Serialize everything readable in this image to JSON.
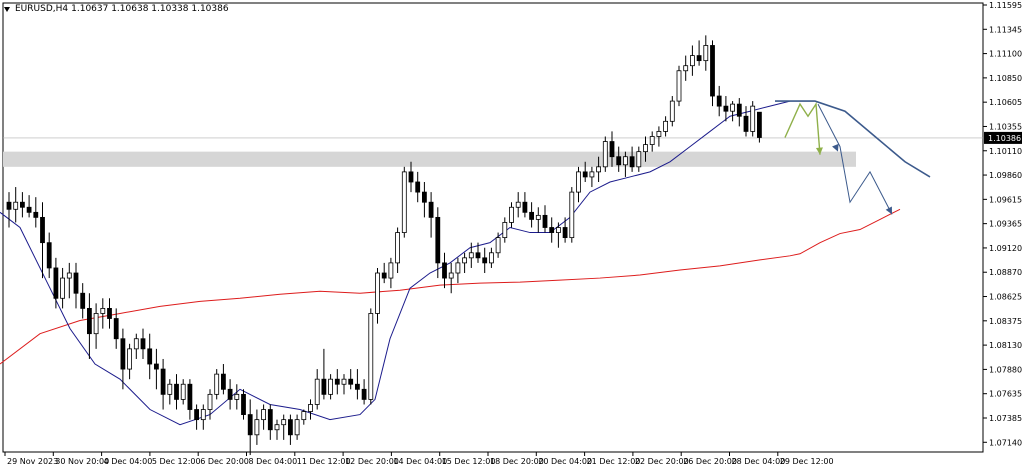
{
  "title": {
    "symbol_tf": "EURUSD,H4",
    "ohlc": "1.10637 1.10638 1.10338 1.10386"
  },
  "current_price_label": "1.10386",
  "colors": {
    "background": "#ffffff",
    "candle": "#000000",
    "sma_fast": "#1c1c8c",
    "sma_slow": "#dd1c1c",
    "zone": "#d6d6d6",
    "forecast_blue": "#3c5a8c",
    "forecast_green": "#8fb04a",
    "price_line": "#b0b0b0"
  },
  "chart_data": {
    "type": "candlestick",
    "ylim": [
      1.0728,
      1.1172
    ],
    "y_ticks": [
      "1.11595",
      "1.11345",
      "1.11100",
      "1.10850",
      "1.10605",
      "1.10355",
      "1.10110",
      "1.09860",
      "1.09615",
      "1.09365",
      "1.09120",
      "1.08870",
      "1.08625",
      "1.08375",
      "1.08130",
      "1.07880",
      "1.07635",
      "1.07385",
      "1.07140"
    ],
    "x_ticks": [
      "29 Nov 2023",
      "30 Nov 20:00",
      "4 Dec 04:00",
      "5 Dec 12:00",
      "6 Dec 20:00",
      "8 Dec 04:00",
      "11 Dec 12:00",
      "12 Dec 20:00",
      "14 Dec 04:00",
      "15 Dec 12:00",
      "18 Dec 20:00",
      "20 Dec 04:00",
      "21 Dec 12:00",
      "22 Dec 20:00",
      "26 Dec 20:00",
      "28 Dec 04:00",
      "29 Dec 12:00"
    ],
    "candles": [
      [
        1.0975,
        1.0985,
        1.095,
        1.0968
      ],
      [
        1.0968,
        1.099,
        1.0955,
        1.0975
      ],
      [
        1.0975,
        1.0985,
        1.096,
        1.097
      ],
      [
        1.097,
        1.0982,
        1.096,
        1.0965
      ],
      [
        1.0965,
        1.098,
        1.095,
        1.096
      ],
      [
        1.096,
        1.0975,
        1.09,
        1.0935
      ],
      [
        1.0935,
        1.0945,
        1.09,
        1.091
      ],
      [
        1.091,
        1.092,
        1.087,
        1.088
      ],
      [
        1.088,
        1.091,
        1.087,
        1.09
      ],
      [
        1.09,
        1.0915,
        1.088,
        1.0905
      ],
      [
        1.0905,
        1.0915,
        1.087,
        1.0885
      ],
      [
        1.0885,
        1.0895,
        1.086,
        1.087
      ],
      [
        1.087,
        1.0885,
        1.082,
        1.0845
      ],
      [
        1.0845,
        1.0875,
        1.083,
        1.0865
      ],
      [
        1.0865,
        1.088,
        1.085,
        1.087
      ],
      [
        1.087,
        1.088,
        1.085,
        1.086
      ],
      [
        1.086,
        1.087,
        1.083,
        1.084
      ],
      [
        1.084,
        1.085,
        1.079,
        1.081
      ],
      [
        1.081,
        1.0835,
        1.08,
        1.083
      ],
      [
        1.083,
        1.0845,
        1.082,
        1.084
      ],
      [
        1.084,
        1.085,
        1.082,
        1.083
      ],
      [
        1.083,
        1.0845,
        1.08,
        1.0815
      ],
      [
        1.0815,
        1.083,
        1.079,
        1.081
      ],
      [
        1.081,
        1.082,
        1.077,
        1.0785
      ],
      [
        1.0785,
        1.08,
        1.0775,
        1.0795
      ],
      [
        1.0795,
        1.0805,
        1.077,
        1.078
      ],
      [
        1.078,
        1.08,
        1.0775,
        1.0795
      ],
      [
        1.0795,
        1.08,
        1.076,
        1.077
      ],
      [
        1.077,
        1.0775,
        1.075,
        1.076
      ],
      [
        1.076,
        1.0775,
        1.075,
        1.077
      ],
      [
        1.077,
        1.079,
        1.076,
        1.0785
      ],
      [
        1.0785,
        1.081,
        1.078,
        1.0805
      ],
      [
        1.0805,
        1.0815,
        1.0785,
        1.079
      ],
      [
        1.079,
        1.08,
        1.077,
        1.078
      ],
      [
        1.078,
        1.0795,
        1.077,
        1.0785
      ],
      [
        1.0785,
        1.079,
        1.076,
        1.0765
      ],
      [
        1.0765,
        1.078,
        1.0725,
        1.0745
      ],
      [
        1.0745,
        1.077,
        1.0735,
        1.076
      ],
      [
        1.076,
        1.0775,
        1.075,
        1.077
      ],
      [
        1.077,
        1.0775,
        1.074,
        1.075
      ],
      [
        1.075,
        1.076,
        1.074,
        1.0755
      ],
      [
        1.0755,
        1.0765,
        1.074,
        1.076
      ],
      [
        1.076,
        1.0765,
        1.0735,
        1.0745
      ],
      [
        1.0745,
        1.0765,
        1.074,
        1.076
      ],
      [
        1.076,
        1.077,
        1.0755,
        1.0768
      ],
      [
        1.0768,
        1.078,
        1.076,
        1.0775
      ],
      [
        1.0775,
        1.081,
        1.077,
        1.08
      ],
      [
        1.08,
        1.083,
        1.078,
        1.0785
      ],
      [
        1.0785,
        1.0805,
        1.078,
        1.08
      ],
      [
        1.08,
        1.081,
        1.0785,
        1.0795
      ],
      [
        1.0795,
        1.0805,
        1.0785,
        1.08
      ],
      [
        1.08,
        1.081,
        1.079,
        1.0795
      ],
      [
        1.0795,
        1.081,
        1.078,
        1.079
      ],
      [
        1.079,
        1.08,
        1.0775,
        1.078
      ],
      [
        1.078,
        1.087,
        1.0775,
        1.0865
      ],
      [
        1.0865,
        1.091,
        1.0855,
        1.0905
      ],
      [
        1.0905,
        1.0915,
        1.0895,
        1.09
      ],
      [
        1.09,
        1.092,
        1.089,
        1.0915
      ],
      [
        1.0915,
        1.095,
        1.0905,
        1.0945
      ],
      [
        1.0945,
        1.101,
        1.094,
        1.1005
      ],
      [
        1.1005,
        1.1015,
        1.0985,
        1.0995
      ],
      [
        1.0995,
        1.1005,
        1.0975,
        1.0985
      ],
      [
        1.0985,
        1.0995,
        1.096,
        1.0975
      ],
      [
        1.0975,
        1.0985,
        1.094,
        1.096
      ],
      [
        1.096,
        1.097,
        1.09,
        1.0915
      ],
      [
        1.0915,
        1.0925,
        1.089,
        1.09
      ],
      [
        1.09,
        1.0915,
        1.0885,
        1.0905
      ],
      [
        1.0905,
        1.092,
        1.0895,
        1.0915
      ],
      [
        1.0915,
        1.0925,
        1.0905,
        1.092
      ],
      [
        1.092,
        1.0935,
        1.091,
        1.0925
      ],
      [
        1.0925,
        1.0935,
        1.0915,
        1.092
      ],
      [
        1.092,
        1.093,
        1.0905,
        1.0915
      ],
      [
        1.0915,
        1.093,
        1.091,
        1.0925
      ],
      [
        1.0925,
        1.0945,
        1.092,
        1.094
      ],
      [
        1.094,
        1.096,
        1.0935,
        1.0955
      ],
      [
        1.0955,
        1.0975,
        1.095,
        1.097
      ],
      [
        1.097,
        1.0985,
        1.096,
        1.0975
      ],
      [
        1.0975,
        1.0985,
        1.096,
        1.0965
      ],
      [
        1.0965,
        1.0975,
        1.095,
        1.0958
      ],
      [
        1.0958,
        1.097,
        1.0945,
        1.0962
      ],
      [
        1.0962,
        1.0972,
        1.0945,
        1.095
      ],
      [
        1.095,
        1.096,
        1.0935,
        1.0945
      ],
      [
        1.0945,
        1.0955,
        1.093,
        1.095
      ],
      [
        1.095,
        1.096,
        1.0935,
        1.094
      ],
      [
        1.094,
        1.099,
        1.0935,
        1.0985
      ],
      [
        1.0985,
        1.101,
        1.0975,
        1.1005
      ],
      [
        1.1005,
        1.1015,
        1.0995,
        1.1
      ],
      [
        1.1,
        1.101,
        1.099,
        1.1005
      ],
      [
        1.1005,
        1.102,
        1.0995,
        1.101
      ],
      [
        1.101,
        1.104,
        1.1005,
        1.1035
      ],
      [
        1.1035,
        1.1045,
        1.101,
        1.102
      ],
      [
        1.102,
        1.103,
        1.1005,
        1.1012
      ],
      [
        1.1012,
        1.1025,
        1.1,
        1.102
      ],
      [
        1.102,
        1.103,
        1.1005,
        1.101
      ],
      [
        1.101,
        1.103,
        1.1005,
        1.1025
      ],
      [
        1.1025,
        1.104,
        1.1015,
        1.1032
      ],
      [
        1.1032,
        1.1045,
        1.1025,
        1.104
      ],
      [
        1.104,
        1.105,
        1.103,
        1.1045
      ],
      [
        1.1045,
        1.106,
        1.104,
        1.1055
      ],
      [
        1.1055,
        1.108,
        1.105,
        1.1075
      ],
      [
        1.1075,
        1.111,
        1.107,
        1.1105
      ],
      [
        1.1105,
        1.112,
        1.1095,
        1.111
      ],
      [
        1.111,
        1.113,
        1.11,
        1.112
      ],
      [
        1.112,
        1.1135,
        1.111,
        1.1115
      ],
      [
        1.1115,
        1.114,
        1.1105,
        1.113
      ],
      [
        1.113,
        1.1135,
        1.107,
        1.108
      ],
      [
        1.108,
        1.109,
        1.106,
        1.107
      ],
      [
        1.107,
        1.108,
        1.1055,
        1.1065
      ],
      [
        1.1065,
        1.1075,
        1.1055,
        1.1072
      ],
      [
        1.1072,
        1.1078,
        1.105,
        1.106
      ],
      [
        1.106,
        1.107,
        1.104,
        1.1045
      ],
      [
        1.1045,
        1.1075,
        1.104,
        1.107
      ],
      [
        1.1064,
        1.1064,
        1.1034,
        1.1039
      ]
    ],
    "sma_fast": [
      [
        0,
        1.0965
      ],
      [
        20,
        1.095
      ],
      [
        45,
        1.09
      ],
      [
        70,
        1.085
      ],
      [
        95,
        1.0815
      ],
      [
        120,
        1.08
      ],
      [
        150,
        1.077
      ],
      [
        180,
        1.0755
      ],
      [
        210,
        1.0765
      ],
      [
        240,
        1.079
      ],
      [
        270,
        1.0775
      ],
      [
        300,
        1.077
      ],
      [
        330,
        1.076
      ],
      [
        360,
        1.0765
      ],
      [
        375,
        1.078
      ],
      [
        390,
        1.084
      ],
      [
        410,
        1.089
      ],
      [
        430,
        1.0905
      ],
      [
        450,
        1.0915
      ],
      [
        470,
        1.093
      ],
      [
        490,
        1.0935
      ],
      [
        510,
        1.095
      ],
      [
        530,
        1.0945
      ],
      [
        550,
        1.0945
      ],
      [
        570,
        1.096
      ],
      [
        590,
        1.0985
      ],
      [
        610,
        1.0995
      ],
      [
        630,
        1.1
      ],
      [
        650,
        1.1005
      ],
      [
        670,
        1.1015
      ],
      [
        690,
        1.103
      ],
      [
        710,
        1.1045
      ],
      [
        730,
        1.106
      ],
      [
        750,
        1.1065
      ],
      [
        770,
        1.107
      ],
      [
        790,
        1.1075
      ]
    ],
    "sma_slow": [
      [
        0,
        1.0815
      ],
      [
        40,
        1.0845
      ],
      [
        80,
        1.0858
      ],
      [
        120,
        1.0865
      ],
      [
        160,
        1.0872
      ],
      [
        200,
        1.0877
      ],
      [
        240,
        1.088
      ],
      [
        280,
        1.0884
      ],
      [
        320,
        1.0887
      ],
      [
        360,
        1.0885
      ],
      [
        400,
        1.0888
      ],
      [
        440,
        1.0893
      ],
      [
        480,
        1.0895
      ],
      [
        520,
        1.0896
      ],
      [
        560,
        1.0898
      ],
      [
        600,
        1.09
      ],
      [
        640,
        1.0903
      ],
      [
        680,
        1.0908
      ],
      [
        720,
        1.0912
      ],
      [
        760,
        1.0918
      ],
      [
        790,
        1.0922
      ],
      [
        800,
        1.0924
      ],
      [
        820,
        1.0935
      ],
      [
        840,
        1.0944
      ],
      [
        860,
        1.0948
      ],
      [
        880,
        1.0958
      ],
      [
        900,
        1.0968
      ]
    ],
    "current_price": 1.10386,
    "zone": [
      1.101,
      1.1025
    ],
    "forecast_blue_curve": [
      [
        775,
        1.1075
      ],
      [
        815,
        1.1075
      ],
      [
        845,
        1.1065
      ],
      [
        875,
        1.104
      ],
      [
        905,
        1.1015
      ],
      [
        930,
        1.1
      ]
    ],
    "forecast_blue_path": [
      [
        818,
        1.1072
      ],
      [
        840,
        1.103
      ],
      [
        850,
        1.0975
      ],
      [
        870,
        1.1005
      ],
      [
        892,
        1.0963
      ]
    ],
    "forecast_green_path": [
      [
        785,
        1.1039
      ],
      [
        800,
        1.1072
      ],
      [
        808,
        1.106
      ],
      [
        816,
        1.1072
      ],
      [
        820,
        1.1022
      ]
    ]
  }
}
